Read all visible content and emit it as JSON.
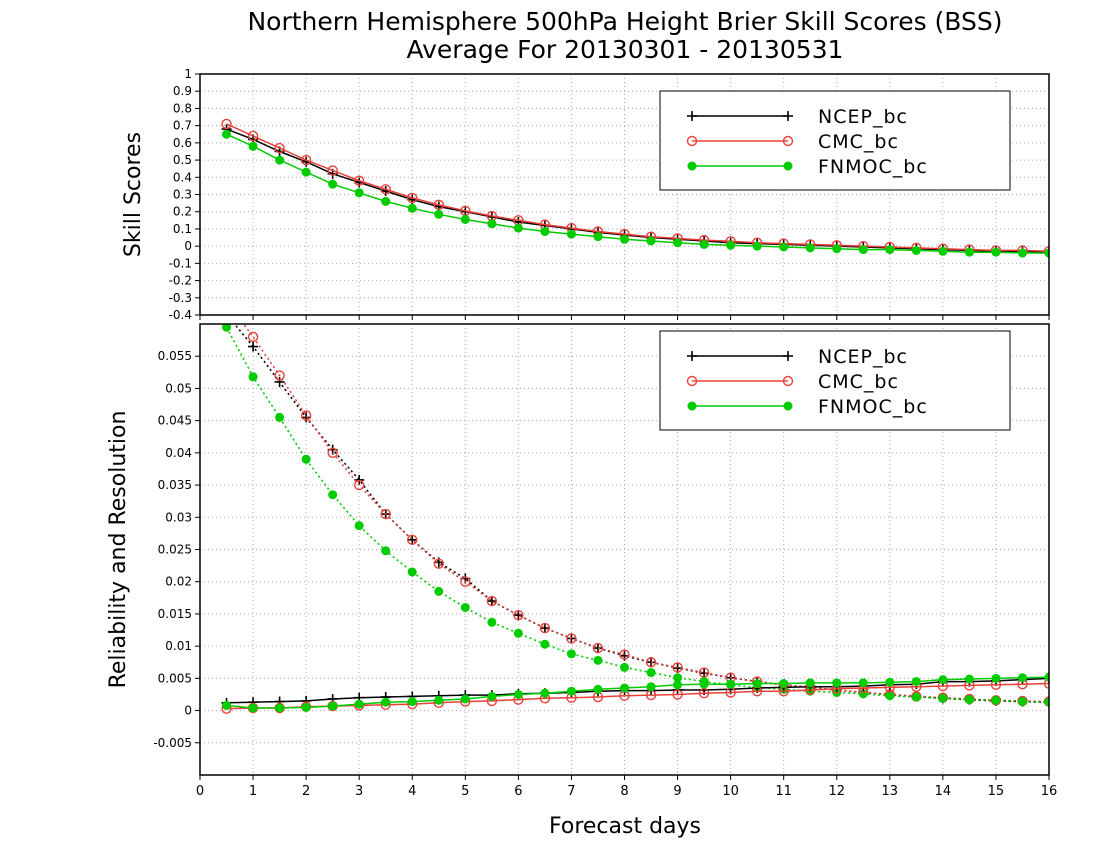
{
  "title_line1": "Northern Hemisphere 500hPa Height Brier Skill Scores (BSS)",
  "title_line2": "Average For 20130301 - 20130531",
  "xlabel": "Forecast days",
  "colors": {
    "NCEP_bc": "#000000",
    "CMC_bc": "#e8403a",
    "FNMOC_bc": "#00cc00"
  },
  "chart_data": [
    {
      "type": "line",
      "ylabel": "Skill Scores",
      "xlim": [
        0,
        16
      ],
      "ylim": [
        -0.4,
        1
      ],
      "xticks": [
        "0",
        "1",
        "2",
        "3",
        "4",
        "5",
        "6",
        "7",
        "8",
        "9",
        "10",
        "11",
        "12",
        "13",
        "14",
        "15",
        "16"
      ],
      "yticks": [
        "-0.4",
        "-0.3",
        "-0.2",
        "-0.1",
        "0",
        "0.1",
        "0.2",
        "0.3",
        "0.4",
        "0.5",
        "0.6",
        "0.7",
        "0.8",
        "0.9",
        "1"
      ],
      "grid": true,
      "legend": "top-right",
      "x": [
        0.5,
        1,
        1.5,
        2,
        2.5,
        3,
        3.5,
        4,
        4.5,
        5,
        5.5,
        6,
        6.5,
        7,
        7.5,
        8,
        8.5,
        9,
        9.5,
        10,
        10.5,
        11,
        11.5,
        12,
        12.5,
        13,
        13.5,
        14,
        14.5,
        15,
        15.5,
        16
      ],
      "series": [
        {
          "name": "NCEP_bc",
          "marker": "plus",
          "style": "solid",
          "values": [
            0.68,
            0.62,
            0.55,
            0.49,
            0.42,
            0.37,
            0.32,
            0.27,
            0.23,
            0.2,
            0.17,
            0.14,
            0.12,
            0.1,
            0.08,
            0.065,
            0.05,
            0.04,
            0.03,
            0.02,
            0.015,
            0.01,
            0.005,
            0,
            -0.005,
            -0.01,
            -0.015,
            -0.02,
            -0.025,
            -0.03,
            -0.03,
            -0.035
          ]
        },
        {
          "name": "CMC_bc",
          "marker": "open-circle",
          "style": "solid",
          "values": [
            0.71,
            0.64,
            0.57,
            0.5,
            0.44,
            0.38,
            0.33,
            0.28,
            0.24,
            0.205,
            0.175,
            0.15,
            0.125,
            0.105,
            0.085,
            0.07,
            0.055,
            0.045,
            0.035,
            0.028,
            0.02,
            0.015,
            0.01,
            0.005,
            0,
            -0.005,
            -0.01,
            -0.015,
            -0.02,
            -0.025,
            -0.025,
            -0.03
          ]
        },
        {
          "name": "FNMOC_bc",
          "marker": "filled-circle",
          "style": "solid",
          "values": [
            0.65,
            0.58,
            0.5,
            0.43,
            0.36,
            0.31,
            0.26,
            0.22,
            0.185,
            0.155,
            0.13,
            0.105,
            0.085,
            0.07,
            0.055,
            0.04,
            0.03,
            0.02,
            0.01,
            0.005,
            0,
            -0.005,
            -0.01,
            -0.015,
            -0.02,
            -0.02,
            -0.025,
            -0.03,
            -0.035,
            -0.035,
            -0.04,
            -0.04
          ]
        }
      ]
    },
    {
      "type": "line",
      "ylabel": "Reliability and Resolution",
      "xlim": [
        0,
        16
      ],
      "ylim": [
        -0.01,
        0.06
      ],
      "xticks": [
        "0",
        "1",
        "2",
        "3",
        "4",
        "5",
        "6",
        "7",
        "8",
        "9",
        "10",
        "11",
        "12",
        "13",
        "14",
        "15",
        "16"
      ],
      "yticks": [
        "-0.005",
        "0",
        "0.005",
        "0.01",
        "0.015",
        "0.02",
        "0.025",
        "0.03",
        "0.035",
        "0.04",
        "0.045",
        "0.05",
        "0.055"
      ],
      "grid": true,
      "legend": "top-right",
      "x": [
        0.5,
        1,
        1.5,
        2,
        2.5,
        3,
        3.5,
        4,
        4.5,
        5,
        5.5,
        6,
        6.5,
        7,
        7.5,
        8,
        8.5,
        9,
        9.5,
        10,
        10.5,
        11,
        11.5,
        12,
        12.5,
        13,
        13.5,
        14,
        14.5,
        15,
        15.5,
        16
      ],
      "series": [
        {
          "name": "NCEP_bc",
          "marker": "plus",
          "style": "dotted",
          "values": [
            0.0615,
            0.0565,
            0.051,
            0.0455,
            0.0405,
            0.0358,
            0.0305,
            0.0265,
            0.023,
            0.0205,
            0.017,
            0.0148,
            0.0128,
            0.0112,
            0.0097,
            0.0085,
            0.0075,
            0.0066,
            0.0058,
            0.0051,
            0.0045,
            0.004,
            0.0036,
            0.0032,
            0.0028,
            0.0025,
            0.0022,
            0.0019,
            0.0017,
            0.0015,
            0.0014,
            0.0013
          ]
        },
        {
          "name": "CMC_bc",
          "marker": "open-circle",
          "style": "dotted",
          "values": [
            0.0635,
            0.058,
            0.052,
            0.0458,
            0.04,
            0.035,
            0.0305,
            0.0265,
            0.0228,
            0.02,
            0.017,
            0.0148,
            0.0128,
            0.0112,
            0.0097,
            0.0087,
            0.0075,
            0.0067,
            0.0059,
            0.0051,
            0.0045,
            0.004,
            0.0036,
            0.0032,
            0.0028,
            0.0025,
            0.0022,
            0.002,
            0.0018,
            0.0016,
            0.0015,
            0.0014
          ]
        },
        {
          "name": "FNMOC_bc",
          "marker": "filled-circle",
          "style": "dotted",
          "values": [
            0.0595,
            0.0518,
            0.0455,
            0.039,
            0.0335,
            0.0287,
            0.0248,
            0.0215,
            0.0185,
            0.016,
            0.0137,
            0.012,
            0.0103,
            0.0088,
            0.0078,
            0.0067,
            0.0059,
            0.0051,
            0.0045,
            0.004,
            0.0036,
            0.0033,
            0.003,
            0.0028,
            0.0026,
            0.0023,
            0.0021,
            0.0019,
            0.0017,
            0.0016,
            0.0014,
            0.0013
          ]
        },
        {
          "name": "NCEP_bc",
          "marker": "plus",
          "style": "solid",
          "values": [
            0.0012,
            0.0013,
            0.0014,
            0.0015,
            0.0018,
            0.002,
            0.0021,
            0.0022,
            0.0023,
            0.0024,
            0.0024,
            0.0026,
            0.0027,
            0.0028,
            0.003,
            0.0031,
            0.0031,
            0.0032,
            0.0032,
            0.0033,
            0.0035,
            0.0036,
            0.0037,
            0.0037,
            0.0038,
            0.004,
            0.0041,
            0.0045,
            0.0045,
            0.0046,
            0.0048,
            0.005
          ]
        },
        {
          "name": "CMC_bc",
          "marker": "open-circle",
          "style": "solid",
          "values": [
            0.0003,
            0.0004,
            0.0004,
            0.0006,
            0.0007,
            0.0008,
            0.0009,
            0.001,
            0.0012,
            0.0014,
            0.0015,
            0.0017,
            0.0019,
            0.002,
            0.0021,
            0.0023,
            0.0024,
            0.0025,
            0.0027,
            0.0028,
            0.003,
            0.003,
            0.0032,
            0.0034,
            0.0035,
            0.0036,
            0.0037,
            0.0038,
            0.0039,
            0.004,
            0.0041,
            0.0042
          ]
        },
        {
          "name": "FNMOC_bc",
          "marker": "filled-circle",
          "style": "solid",
          "values": [
            0.0008,
            0.0004,
            0.0004,
            0.0005,
            0.0007,
            0.001,
            0.0013,
            0.0014,
            0.0016,
            0.0018,
            0.0022,
            0.0025,
            0.0027,
            0.003,
            0.0033,
            0.0035,
            0.0037,
            0.004,
            0.0041,
            0.0041,
            0.0042,
            0.0042,
            0.0043,
            0.0043,
            0.0043,
            0.0044,
            0.0045,
            0.0048,
            0.0049,
            0.005,
            0.0051,
            0.0052
          ]
        }
      ]
    }
  ]
}
